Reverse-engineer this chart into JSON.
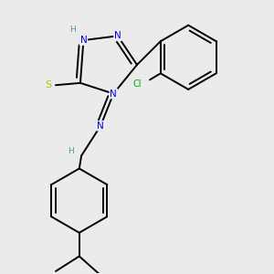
{
  "background_color": "#ebebeb",
  "atom_colors": {
    "N": "#0000ee",
    "S": "#bbbb00",
    "Cl": "#00aa00",
    "C": "#000000",
    "H": "#4499aa"
  },
  "bond_color": "#000000",
  "bond_lw": 1.4
}
